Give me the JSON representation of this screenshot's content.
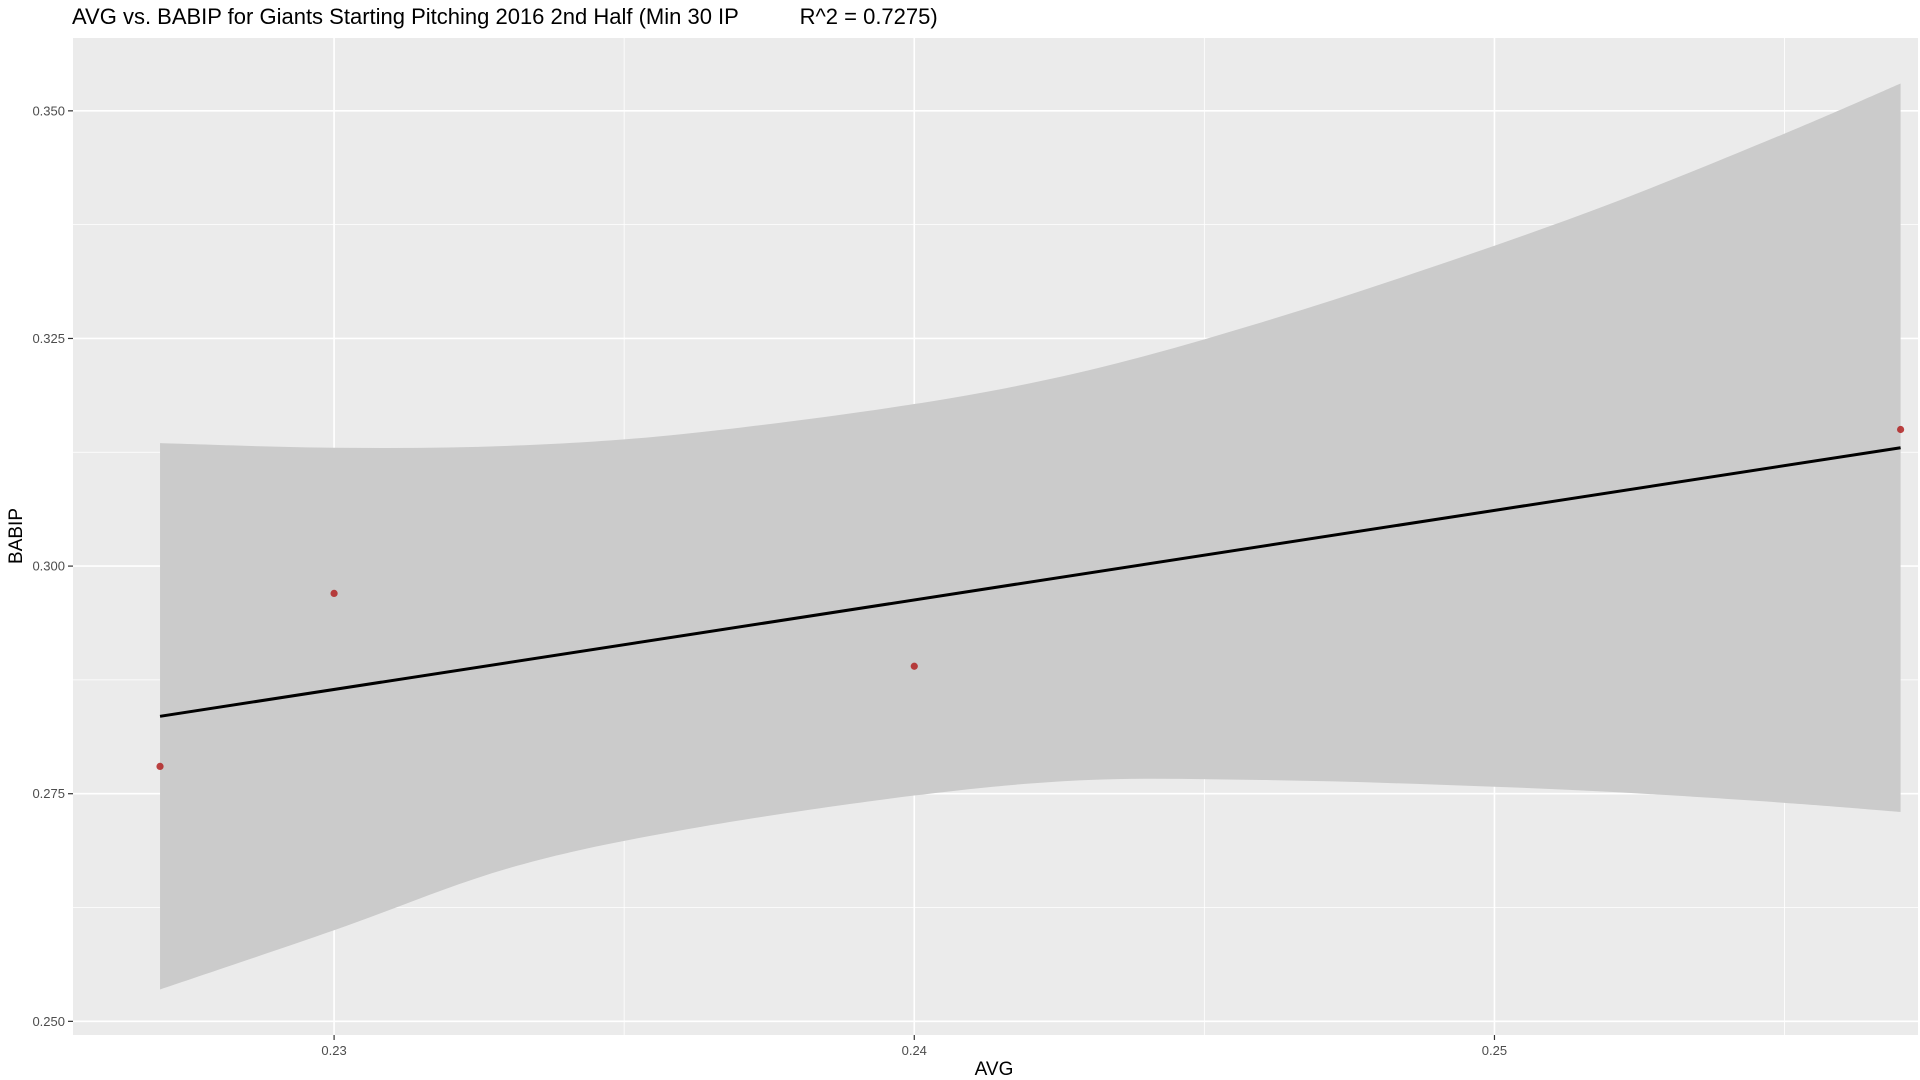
{
  "chart_data": {
    "type": "scatter",
    "title": "AVG vs. BABIP for Giants Starting Pitching 2016 2nd Half (Min 30 IP          R^2 = 0.7275)",
    "xlabel": "AVG",
    "ylabel": "BABIP",
    "xlim": [
      0.2255,
      0.2573
    ],
    "ylim": [
      0.2485,
      0.358
    ],
    "x_ticks": [
      "0.23",
      "0.24",
      "0.25"
    ],
    "y_ticks": [
      "0.250",
      "0.275",
      "0.300",
      "0.325",
      "0.350"
    ],
    "grid": true,
    "series": [
      {
        "points": [
          {
            "x": 0.227,
            "y": 0.278
          },
          {
            "x": 0.23,
            "y": 0.297
          },
          {
            "x": 0.24,
            "y": 0.289
          },
          {
            "x": 0.257,
            "y": 0.315
          }
        ]
      }
    ],
    "regression_line": {
      "x": [
        0.227,
        0.257
      ],
      "y": [
        0.2835,
        0.313
      ]
    },
    "confidence_band": {
      "x": [
        0.227,
        0.23,
        0.233,
        0.236,
        0.24,
        0.243,
        0.246,
        0.249,
        0.252,
        0.255,
        0.257
      ],
      "upper": [
        0.3135,
        0.313,
        0.3132,
        0.3145,
        0.3178,
        0.3215,
        0.3268,
        0.333,
        0.3398,
        0.3475,
        0.353
      ],
      "lower": [
        0.2535,
        0.26,
        0.2668,
        0.271,
        0.2748,
        0.2765,
        0.2765,
        0.276,
        0.2752,
        0.274,
        0.273
      ]
    },
    "colors": {
      "panel_bg": "#ebebeb",
      "grid_major": "#ffffff",
      "band_fill": "#cbcbcb",
      "line": "#000000",
      "point": "#b22222"
    }
  }
}
